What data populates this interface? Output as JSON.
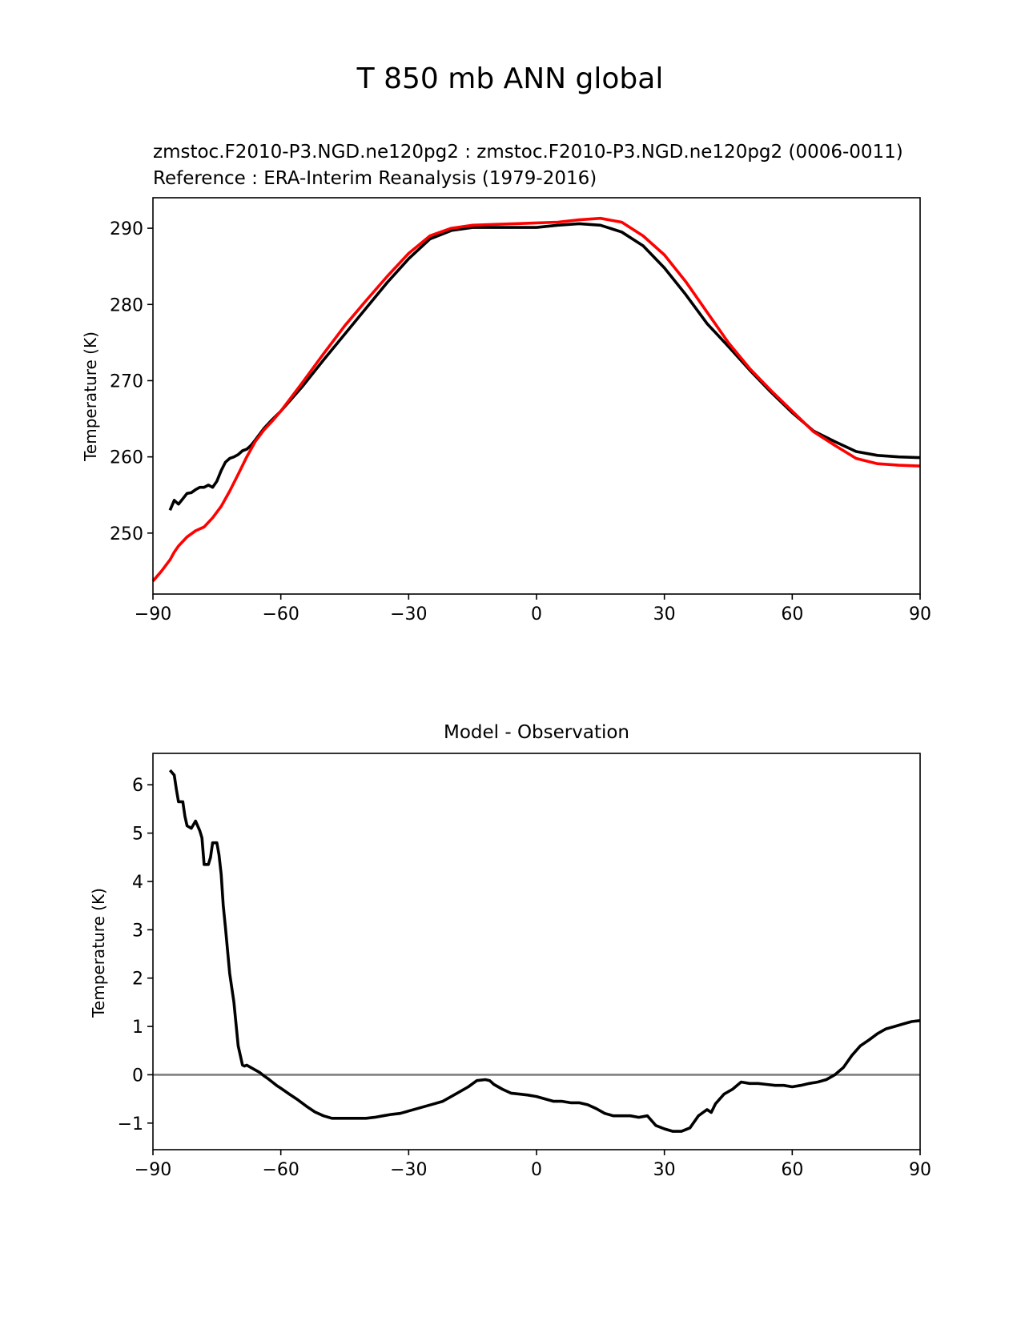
{
  "figure": {
    "suptitle": "T 850 mb ANN global"
  },
  "chart_data": [
    {
      "type": "line",
      "title_test": "zmstoc.F2010-P3.NGD.ne120pg2 : zmstoc.F2010-P3.NGD.ne120pg2 (0006-0011)",
      "title_ref": "Reference : ERA-Interim Reanalysis (1979-2016)",
      "title_ref_color": "#ff0000",
      "xlabel": "",
      "ylabel": "Temperature (K)",
      "xlim": [
        -90,
        90
      ],
      "ylim": [
        242,
        294
      ],
      "xticks": [
        -90,
        -60,
        -30,
        0,
        30,
        60,
        90
      ],
      "xtick_labels": [
        "−90",
        "−60",
        "−30",
        "0",
        "30",
        "60",
        "90"
      ],
      "yticks": [
        250,
        260,
        270,
        280,
        290
      ],
      "ytick_labels": [
        "250",
        "260",
        "270",
        "280",
        "290"
      ],
      "series": [
        {
          "name": "zmstoc.F2010-P3.NGD.ne120pg2",
          "color": "#000000",
          "x": [
            -86,
            -85,
            -84,
            -83,
            -82,
            -81,
            -80,
            -79,
            -78,
            -77,
            -76,
            -75,
            -74,
            -73,
            -72,
            -71,
            -70,
            -69,
            -68,
            -67,
            -66,
            -64,
            -62,
            -60,
            -55,
            -50,
            -45,
            -40,
            -35,
            -30,
            -25,
            -20,
            -15,
            -10,
            -5,
            0,
            5,
            10,
            15,
            20,
            25,
            30,
            35,
            40,
            45,
            50,
            55,
            60,
            65,
            70,
            75,
            80,
            85,
            90
          ],
          "y": [
            253.0,
            254.3,
            253.8,
            254.5,
            255.2,
            255.3,
            255.7,
            256.0,
            256.0,
            256.3,
            256.0,
            256.8,
            258.2,
            259.3,
            259.8,
            260.0,
            260.3,
            260.8,
            261.0,
            261.5,
            262.2,
            263.7,
            264.9,
            266.0,
            269.2,
            272.7,
            276.1,
            279.5,
            282.9,
            286.0,
            288.6,
            289.7,
            290.1,
            290.1,
            290.1,
            290.1,
            290.4,
            290.6,
            290.4,
            289.5,
            287.7,
            284.8,
            281.3,
            277.5,
            274.5,
            271.4,
            268.5,
            265.8,
            263.4,
            262.0,
            260.7,
            260.2,
            260.0,
            259.9
          ]
        },
        {
          "name": "ERA-Interim Reanalysis",
          "color": "#ff0000",
          "x": [
            -90,
            -88,
            -86,
            -85,
            -84,
            -82,
            -80,
            -78,
            -76,
            -74,
            -72,
            -70,
            -68,
            -66,
            -64,
            -62,
            -60,
            -55,
            -50,
            -45,
            -40,
            -35,
            -30,
            -25,
            -20,
            -15,
            -10,
            -5,
            0,
            5,
            10,
            15,
            20,
            25,
            30,
            35,
            40,
            45,
            50,
            55,
            60,
            65,
            70,
            75,
            80,
            85,
            90
          ],
          "y": [
            243.7,
            245.0,
            246.5,
            247.5,
            248.3,
            249.5,
            250.3,
            250.8,
            252.0,
            253.5,
            255.5,
            257.7,
            260.0,
            262.0,
            263.5,
            264.7,
            266.0,
            269.7,
            273.5,
            277.2,
            280.5,
            283.7,
            286.7,
            289.0,
            290.0,
            290.4,
            290.5,
            290.6,
            290.7,
            290.8,
            291.1,
            291.3,
            290.8,
            289.0,
            286.5,
            283.0,
            279.0,
            275.0,
            271.6,
            268.7,
            266.0,
            263.3,
            261.5,
            259.8,
            259.1,
            258.9,
            258.8
          ]
        }
      ]
    },
    {
      "type": "line",
      "title": "Model - Observation",
      "xlabel": "",
      "ylabel": "Temperature (K)",
      "xlim": [
        -90,
        90
      ],
      "ylim": [
        -1.55,
        6.65
      ],
      "xticks": [
        -90,
        -60,
        -30,
        0,
        30,
        60,
        90
      ],
      "xtick_labels": [
        "−90",
        "−60",
        "−30",
        "0",
        "30",
        "60",
        "90"
      ],
      "yticks": [
        -1,
        0,
        1,
        2,
        3,
        4,
        5,
        6
      ],
      "ytick_labels": [
        "−1",
        "0",
        "1",
        "2",
        "3",
        "4",
        "5",
        "6"
      ],
      "zero_line_color": "#808080",
      "series": [
        {
          "name": "Model - Observation",
          "color": "#000000",
          "x": [
            -86,
            -85,
            -84.5,
            -84,
            -83,
            -82.5,
            -82,
            -81,
            -80,
            -79,
            -78.5,
            -78,
            -77,
            -76.5,
            -76,
            -75,
            -74.5,
            -74,
            -73.5,
            -73,
            -72,
            -71,
            -70,
            -69,
            -68.5,
            -68,
            -67,
            -66,
            -65,
            -64,
            -63,
            -62,
            -61,
            -60,
            -58,
            -56,
            -54,
            -52,
            -50,
            -48,
            -46,
            -44,
            -42,
            -40,
            -38,
            -36,
            -34,
            -32,
            -30,
            -28,
            -26,
            -24,
            -22,
            -20,
            -18,
            -16,
            -14,
            -12,
            -11,
            -10,
            -8,
            -6,
            -4,
            -2,
            0,
            2,
            4,
            6,
            8,
            10,
            12,
            14,
            16,
            18,
            20,
            22,
            24,
            26,
            28,
            30,
            32,
            34,
            36,
            38,
            40,
            41,
            42,
            44,
            46,
            48,
            50,
            52,
            54,
            56,
            58,
            60,
            62,
            64,
            66,
            68,
            70,
            72,
            74,
            76,
            78,
            80,
            82,
            84,
            86,
            88,
            90
          ],
          "y": [
            6.3,
            6.2,
            5.9,
            5.65,
            5.65,
            5.35,
            5.15,
            5.1,
            5.25,
            5.05,
            4.9,
            4.35,
            4.35,
            4.5,
            4.8,
            4.8,
            4.55,
            4.15,
            3.5,
            3.05,
            2.1,
            1.5,
            0.6,
            0.2,
            0.18,
            0.2,
            0.15,
            0.1,
            0.05,
            -0.02,
            -0.08,
            -0.15,
            -0.22,
            -0.28,
            -0.4,
            -0.52,
            -0.65,
            -0.77,
            -0.85,
            -0.9,
            -0.9,
            -0.9,
            -0.9,
            -0.9,
            -0.88,
            -0.85,
            -0.82,
            -0.8,
            -0.75,
            -0.7,
            -0.65,
            -0.6,
            -0.55,
            -0.45,
            -0.35,
            -0.25,
            -0.12,
            -0.1,
            -0.12,
            -0.2,
            -0.3,
            -0.38,
            -0.4,
            -0.42,
            -0.45,
            -0.5,
            -0.55,
            -0.55,
            -0.58,
            -0.58,
            -0.62,
            -0.7,
            -0.8,
            -0.85,
            -0.85,
            -0.85,
            -0.88,
            -0.85,
            -1.05,
            -1.12,
            -1.17,
            -1.17,
            -1.1,
            -0.85,
            -0.72,
            -0.78,
            -0.6,
            -0.4,
            -0.3,
            -0.15,
            -0.18,
            -0.18,
            -0.2,
            -0.22,
            -0.22,
            -0.25,
            -0.22,
            -0.18,
            -0.15,
            -0.1,
            0.0,
            0.15,
            0.4,
            0.6,
            0.72,
            0.85,
            0.95,
            1.0,
            1.05,
            1.1,
            1.12
          ]
        }
      ]
    }
  ]
}
